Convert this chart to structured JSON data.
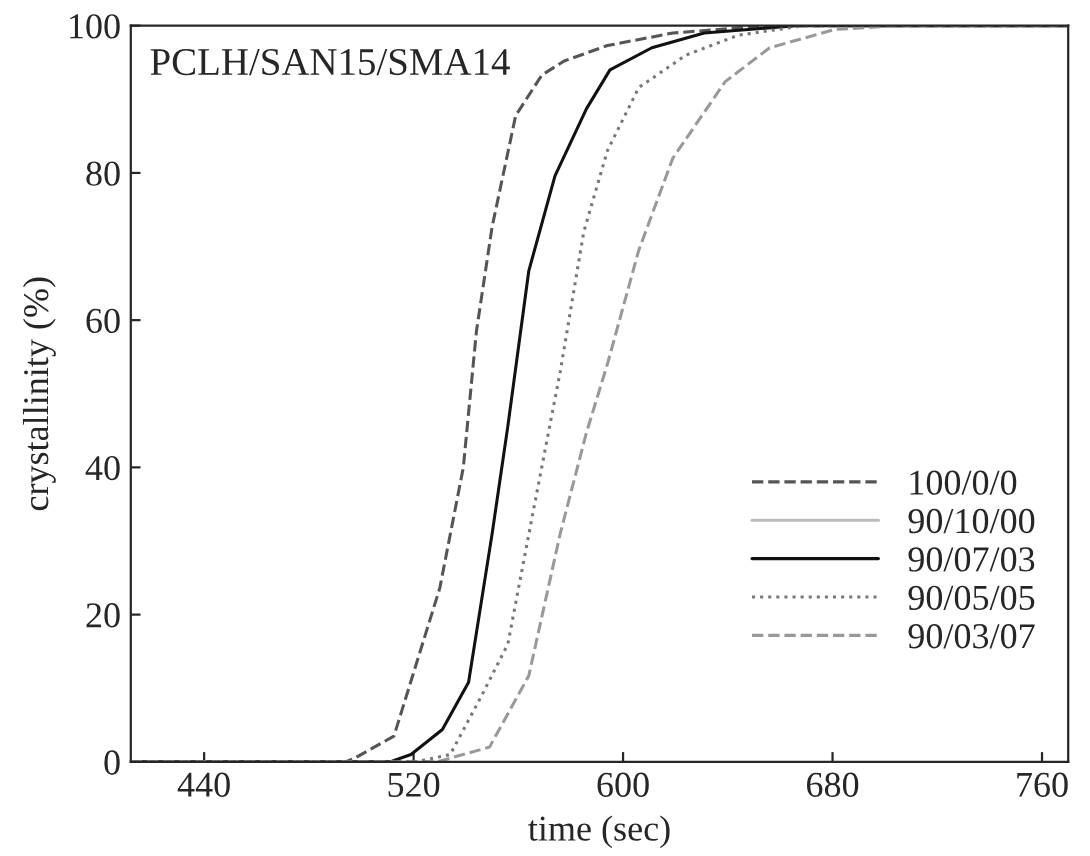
{
  "chart_data": {
    "type": "line",
    "xlabel": "time (sec)",
    "ylabel": "crystallinity (%)",
    "annotations": [
      "PCLH/SAN15/SMA14"
    ],
    "xlim": [
      412,
      770
    ],
    "ylim": [
      0,
      100
    ],
    "xticks": [
      440,
      520,
      600,
      680,
      760
    ],
    "yticks": [
      0,
      20,
      40,
      60,
      80,
      100
    ],
    "grid": false,
    "legend": "bottom right",
    "marker": "none",
    "series": [
      {
        "name": "100/0/0",
        "color": "#555555",
        "line_style": "dashed",
        "x": [
          412,
          494,
          497.5,
          512.5,
          530,
          539,
          544,
          550,
          559,
          569,
          577.5,
          594,
          619,
          644,
          666,
          770
        ],
        "values": [
          0,
          0,
          0.5,
          3.5,
          23.6,
          40,
          58.5,
          72.7,
          87.8,
          93.3,
          95.2,
          97.3,
          99,
          99.7,
          100,
          100
        ]
      },
      {
        "name": "90/10/00",
        "color": "#bbbbbb",
        "line_style": "solid"
      },
      {
        "name": "90/07/03",
        "color": "#111111",
        "line_style": "solid",
        "x": [
          412,
          511,
          519,
          531,
          541,
          550,
          556,
          564,
          574,
          586,
          595,
          611,
          631,
          666,
          770
        ],
        "values": [
          0,
          0,
          1,
          4.4,
          10.8,
          31,
          45.6,
          66.7,
          79.6,
          88.7,
          94,
          97,
          99,
          100,
          100
        ]
      },
      {
        "name": "90/05/05",
        "color": "#777777",
        "line_style": "dotted",
        "x": [
          412,
          521,
          534,
          546,
          556,
          566,
          576,
          585,
          594,
          606,
          624,
          644,
          669,
          770
        ],
        "values": [
          0,
          0,
          1,
          9,
          16,
          34.6,
          53,
          72,
          83,
          91.6,
          96,
          98.7,
          100,
          100
        ]
      },
      {
        "name": "90/03/07",
        "color": "#999999",
        "line_style": "dashed",
        "x": [
          412,
          529,
          549,
          564,
          576,
          586,
          594,
          606,
          619,
          639,
          656,
          681,
          706,
          770
        ],
        "values": [
          0,
          0,
          2,
          11.7,
          31,
          44.7,
          54,
          69.5,
          82,
          92.4,
          97,
          99.5,
          100,
          100
        ]
      }
    ]
  }
}
